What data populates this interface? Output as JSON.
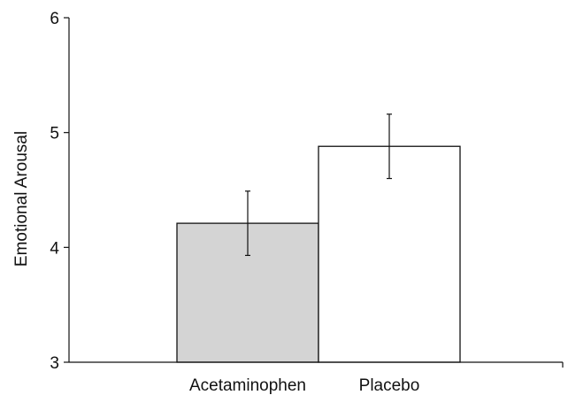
{
  "chart_data": {
    "type": "bar",
    "categories": [
      "Acetaminophen",
      "Placebo"
    ],
    "values": [
      4.21,
      4.88
    ],
    "error_low": [
      3.93,
      4.6
    ],
    "error_high": [
      4.49,
      5.16
    ],
    "bar_colors": [
      "#d4d4d4",
      "#ffffff"
    ],
    "edge_color": "#111111",
    "ylabel": "Emotional Arousal",
    "ylim": [
      3,
      6
    ],
    "yticks": [
      "3",
      "4",
      "5",
      "6"
    ],
    "grid": false,
    "legend": "none"
  }
}
